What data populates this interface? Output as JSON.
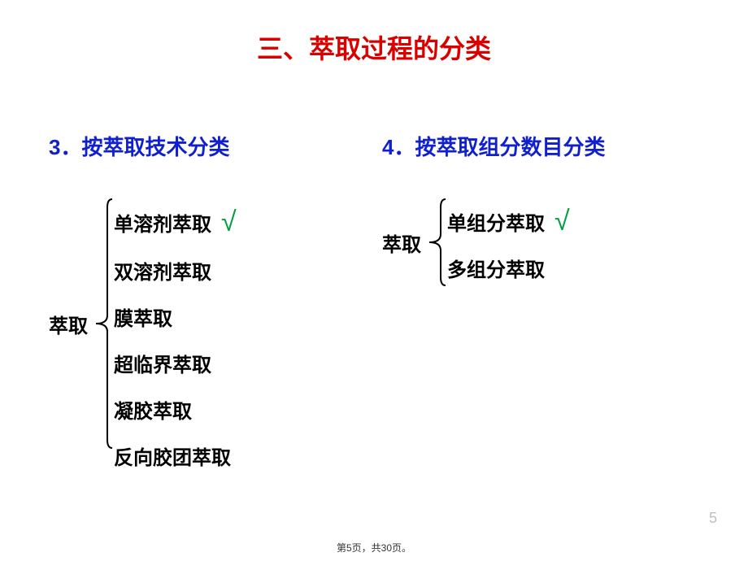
{
  "title": {
    "text": "三、萃取过程的分类",
    "color": "#d90000"
  },
  "left": {
    "heading": {
      "text": "3．按萃取技术分类",
      "color": "#1020cc"
    },
    "groupLabel": "萃取",
    "items": [
      {
        "label": "单溶剂萃取",
        "checked": true
      },
      {
        "label": "双溶剂萃取",
        "checked": false
      },
      {
        "label": "膜萃取",
        "checked": false
      },
      {
        "label": "超临界萃取",
        "checked": false
      },
      {
        "label": "凝胶萃取",
        "checked": false
      },
      {
        "label": "反向胶团萃取",
        "checked": false
      }
    ]
  },
  "right": {
    "heading": {
      "text": "4．按萃取组分数目分类",
      "color": "#1020cc"
    },
    "groupLabel": "萃取",
    "items": [
      {
        "label": "单组分萃取",
        "checked": true
      },
      {
        "label": "多组分萃取",
        "checked": false
      }
    ]
  },
  "checkColor": "#009e3d",
  "braceColor": "#000000",
  "pageNumber": "5",
  "footer": "第5页，共30页。",
  "brace": {
    "leftHeight": 310,
    "rightHeight": 110,
    "width": 24,
    "stroke": 2
  }
}
